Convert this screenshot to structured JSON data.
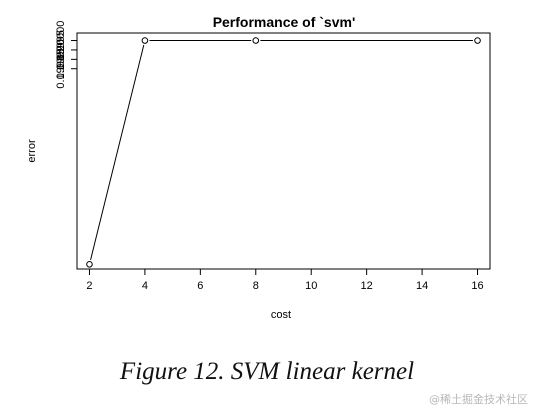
{
  "chart_data": {
    "type": "line",
    "title": "Performance of `svm'",
    "xlabel": "cost",
    "ylabel": "error",
    "x": [
      2,
      4,
      8,
      16
    ],
    "series": [
      {
        "values": [
          0.19881,
          0.2,
          0.2,
          0.2
        ]
      }
    ],
    "xlim": [
      1.55,
      16.45
    ],
    "ylim": [
      0.198785,
      0.20004
    ],
    "xticks": [
      2,
      4,
      6,
      8,
      10,
      12,
      14,
      16
    ],
    "yticks": [
      0.19985,
      0.1999,
      0.19995,
      0.2
    ],
    "ytick_labels": [
      "0.19985",
      "0.19990",
      "0.19995",
      "0.20000"
    ],
    "markers": "open-circle",
    "grid": false,
    "legend": "none"
  },
  "caption": "Figure 12. SVM linear kernel",
  "watermark": "@稀土掘金技术社区"
}
